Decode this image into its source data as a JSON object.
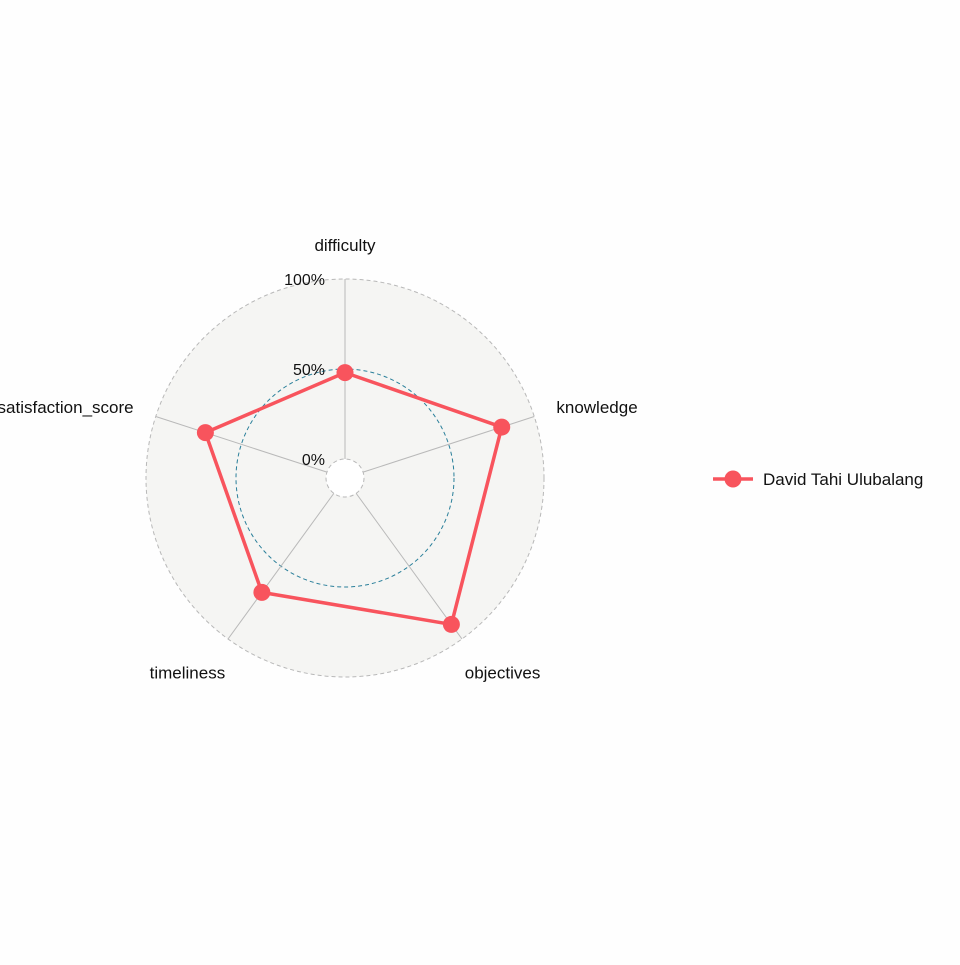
{
  "chart_data": {
    "type": "radar",
    "axes": [
      "difficulty",
      "knowledge",
      "objectives",
      "timeliness",
      "satisfaction_score"
    ],
    "grid_labels": [
      "0%",
      "50%",
      "100%"
    ],
    "ylim": [
      0,
      1
    ],
    "series": [
      {
        "name": "David Tahi Ulubalang",
        "values": [
          0.48,
          0.81,
          0.9,
          0.68,
          0.71
        ],
        "color": "#f8545d"
      }
    ],
    "legend_position": "right",
    "colors": {
      "panel_fill": "#f5f5f3",
      "outer_ring": "#b8b8b8",
      "mid_ring": "#2a7f9a",
      "spoke": "#b9b9b9"
    }
  }
}
